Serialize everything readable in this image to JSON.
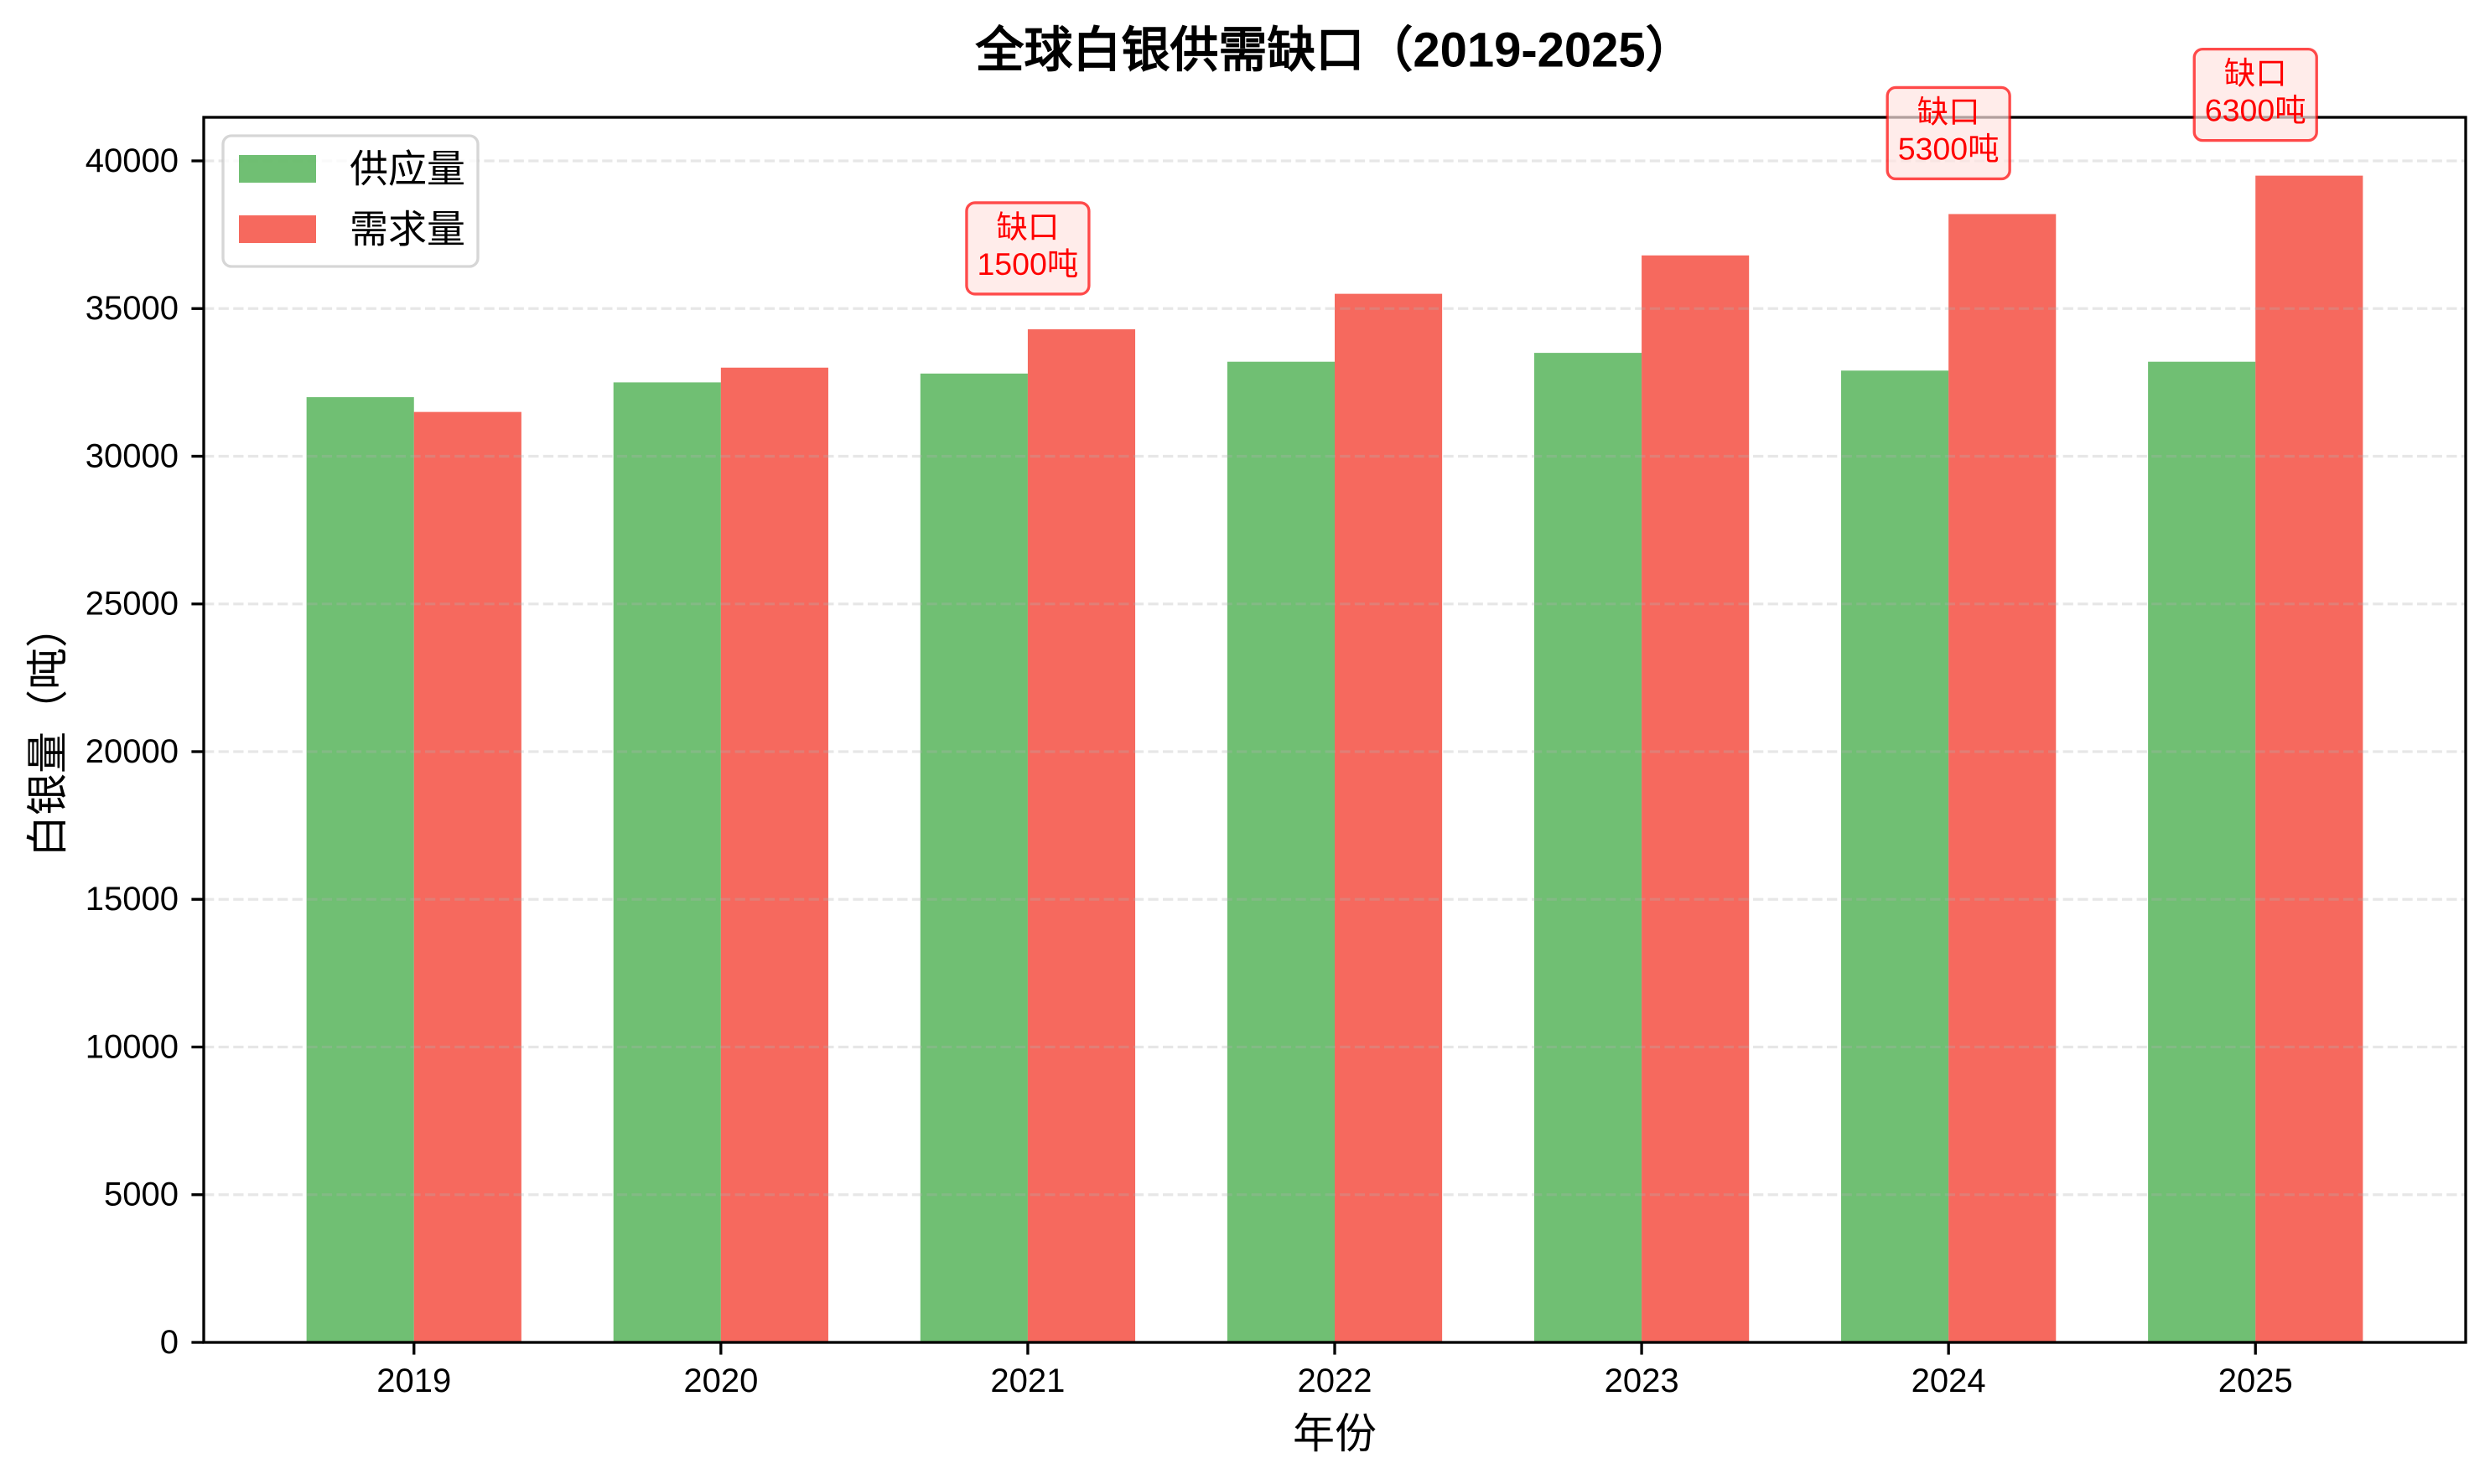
{
  "chart_data": {
    "type": "bar",
    "title": "全球白银供需缺口（2019-2025）",
    "xlabel": "年份",
    "ylabel": "白银量（吨）",
    "categories": [
      "2019",
      "2020",
      "2021",
      "2022",
      "2023",
      "2024",
      "2025"
    ],
    "series": [
      {
        "name": "供应量",
        "color": "#4CAF50",
        "alpha": 0.8,
        "values": [
          32000,
          32500,
          32800,
          33200,
          33500,
          32900,
          33200
        ]
      },
      {
        "name": "需求量",
        "color": "#F44336",
        "alpha": 0.8,
        "values": [
          31500,
          33000,
          34300,
          35500,
          36800,
          38200,
          39500
        ]
      }
    ],
    "bar_width": 0.35,
    "xlim": [
      -0.685,
      6.685
    ],
    "ylim": [
      0,
      41475
    ],
    "yticks": [
      0,
      5000,
      10000,
      15000,
      20000,
      25000,
      30000,
      35000,
      40000
    ],
    "grid": {
      "axis": "y",
      "style": "dashed",
      "on": true
    },
    "legend": {
      "position": "upper left",
      "entries": [
        "供应量",
        "需求量"
      ]
    },
    "annotations": [
      {
        "category": "2021",
        "gap": 1500,
        "lines": [
          "缺口",
          "1500吨"
        ],
        "text_color": "#ff0000"
      },
      {
        "category": "2024",
        "gap": 5300,
        "lines": [
          "缺口",
          "5300吨"
        ],
        "text_color": "#ff0000"
      },
      {
        "category": "2025",
        "gap": 6300,
        "lines": [
          "缺口",
          "6300吨"
        ],
        "text_color": "#ff0000"
      }
    ]
  }
}
